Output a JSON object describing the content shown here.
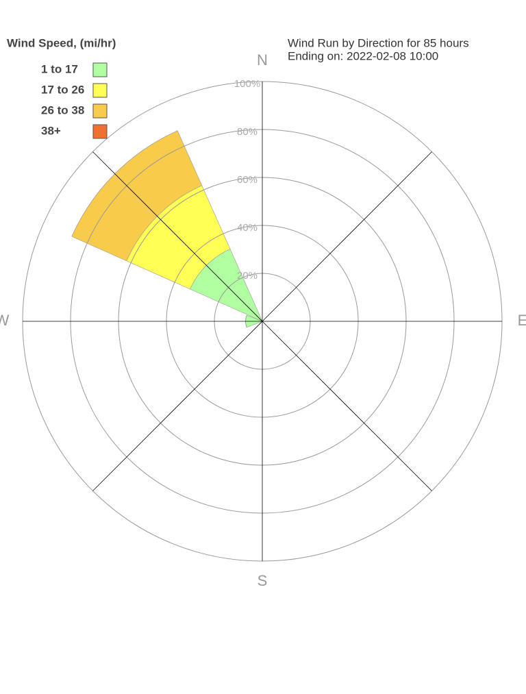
{
  "chart_data": {
    "type": "windrose",
    "title": "Wind Run by Direction for 85 hours",
    "subtitle": "Ending on: 2022-02-08 10:00",
    "legend_title": "Wind Speed, (mi/hr)",
    "categories": [
      "N",
      null,
      "E",
      null,
      "S",
      null,
      "W",
      null
    ],
    "series": [
      {
        "name": "1 to 17",
        "color": "#b0ffa0",
        "values": [
          0,
          0,
          0,
          0,
          0,
          0,
          7,
          33
        ]
      },
      {
        "name": "17 to 26",
        "color": "#ffff55",
        "values": [
          0,
          0,
          0,
          0,
          0,
          0,
          0,
          29
        ]
      },
      {
        "name": "26 to 38",
        "color": "#f8cc4a",
        "values": [
          0,
          0,
          0,
          0,
          0,
          0,
          0,
          25
        ]
      },
      {
        "name": "38+",
        "color": "#f07030",
        "values": [
          0,
          0,
          0,
          0,
          0,
          0,
          0,
          0
        ]
      }
    ],
    "ylim": [
      0,
      100
    ],
    "yticks": [
      {
        "value": 20,
        "label": "20%"
      },
      {
        "value": 40,
        "label": "40%"
      },
      {
        "value": 60,
        "label": "60%"
      },
      {
        "value": 80,
        "label": "80%"
      },
      {
        "value": 100,
        "label": "100%"
      }
    ],
    "grid": true
  }
}
